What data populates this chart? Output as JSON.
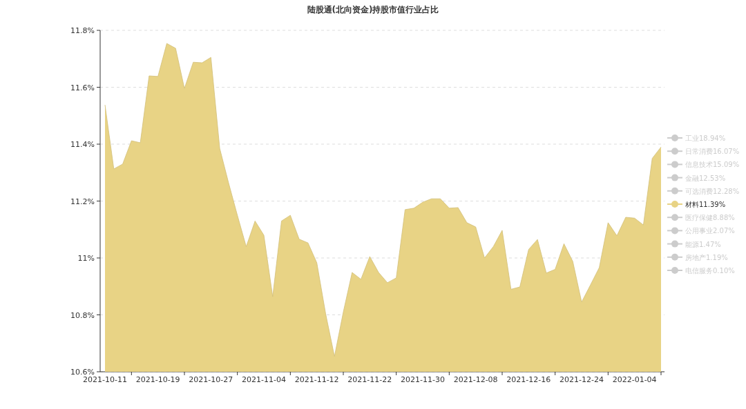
{
  "chart_data": {
    "type": "area",
    "title": "陆股通(北向资金)持股市值行业占比",
    "categories": [
      "2021-10-11",
      null,
      null,
      null,
      null,
      null,
      "2021-10-19",
      null,
      null,
      null,
      null,
      null,
      "2021-10-27",
      null,
      null,
      null,
      null,
      null,
      "2021-11-04",
      null,
      null,
      null,
      null,
      null,
      "2021-11-12",
      null,
      null,
      null,
      null,
      null,
      "2021-11-22",
      null,
      null,
      null,
      null,
      null,
      "2021-11-30",
      null,
      null,
      null,
      null,
      null,
      "2021-12-08",
      null,
      null,
      null,
      null,
      null,
      "2021-12-16",
      null,
      null,
      null,
      null,
      null,
      "2021-12-24",
      null,
      null,
      null,
      null,
      null,
      "2022-01-04",
      null,
      null,
      null
    ],
    "ylim": [
      10.6,
      11.8
    ],
    "yticks": [
      {
        "value": 10.6,
        "label": "10.6%"
      },
      {
        "value": 10.8,
        "label": "10.8%"
      },
      {
        "value": 11,
        "label": "11%"
      },
      {
        "value": 11.2,
        "label": "11.2%"
      },
      {
        "value": 11.4,
        "label": "11.4%"
      },
      {
        "value": 11.6,
        "label": "11.6%"
      },
      {
        "value": 11.8,
        "label": "11.8%"
      }
    ],
    "grid": "y",
    "legend": "right",
    "series": [
      {
        "name": "工业18.94%",
        "color": "#cccccc",
        "values": [
          null,
          null,
          null,
          null,
          null,
          null,
          null,
          null,
          null,
          null,
          null,
          null,
          null,
          null,
          null,
          null,
          null,
          null,
          null,
          null,
          null,
          null,
          null,
          null,
          null,
          null,
          null,
          null,
          null,
          null,
          null,
          null,
          null,
          null,
          null,
          null,
          null,
          null,
          null,
          null,
          null,
          null,
          null,
          null,
          null,
          null,
          null,
          null,
          null,
          null,
          null,
          null,
          null,
          null,
          null,
          null,
          null,
          null,
          null,
          null,
          null,
          null,
          null,
          null
        ]
      },
      {
        "name": "日常消费16.07%",
        "color": "#cccccc",
        "values": [
          null,
          null,
          null,
          null,
          null,
          null,
          null,
          null,
          null,
          null,
          null,
          null,
          null,
          null,
          null,
          null,
          null,
          null,
          null,
          null,
          null,
          null,
          null,
          null,
          null,
          null,
          null,
          null,
          null,
          null,
          null,
          null,
          null,
          null,
          null,
          null,
          null,
          null,
          null,
          null,
          null,
          null,
          null,
          null,
          null,
          null,
          null,
          null,
          null,
          null,
          null,
          null,
          null,
          null,
          null,
          null,
          null,
          null,
          null,
          null,
          null,
          null,
          null,
          null
        ]
      },
      {
        "name": "信息技术15.09%",
        "color": "#cccccc",
        "values": [
          null,
          null,
          null,
          null,
          null,
          null,
          null,
          null,
          null,
          null,
          null,
          null,
          null,
          null,
          null,
          null,
          null,
          null,
          null,
          null,
          null,
          null,
          null,
          null,
          null,
          null,
          null,
          null,
          null,
          null,
          null,
          null,
          null,
          null,
          null,
          null,
          null,
          null,
          null,
          null,
          null,
          null,
          null,
          null,
          null,
          null,
          null,
          null,
          null,
          null,
          null,
          null,
          null,
          null,
          null,
          null,
          null,
          null,
          null,
          null,
          null,
          null,
          null,
          null
        ]
      },
      {
        "name": "金融12.53%",
        "color": "#cccccc",
        "values": [
          null,
          null,
          null,
          null,
          null,
          null,
          null,
          null,
          null,
          null,
          null,
          null,
          null,
          null,
          null,
          null,
          null,
          null,
          null,
          null,
          null,
          null,
          null,
          null,
          null,
          null,
          null,
          null,
          null,
          null,
          null,
          null,
          null,
          null,
          null,
          null,
          null,
          null,
          null,
          null,
          null,
          null,
          null,
          null,
          null,
          null,
          null,
          null,
          null,
          null,
          null,
          null,
          null,
          null,
          null,
          null,
          null,
          null,
          null,
          null,
          null,
          null,
          null,
          null
        ]
      },
      {
        "name": "可选消费12.28%",
        "color": "#cccccc",
        "values": [
          null,
          null,
          null,
          null,
          null,
          null,
          null,
          null,
          null,
          null,
          null,
          null,
          null,
          null,
          null,
          null,
          null,
          null,
          null,
          null,
          null,
          null,
          null,
          null,
          null,
          null,
          null,
          null,
          null,
          null,
          null,
          null,
          null,
          null,
          null,
          null,
          null,
          null,
          null,
          null,
          null,
          null,
          null,
          null,
          null,
          null,
          null,
          null,
          null,
          null,
          null,
          null,
          null,
          null,
          null,
          null,
          null,
          null,
          null,
          null,
          null,
          null,
          null,
          null
        ]
      },
      {
        "name": "材料11.39%",
        "color": "#e8d385",
        "values": [
          11.538,
          11.313,
          11.33,
          11.412,
          11.405,
          11.64,
          11.638,
          11.754,
          11.737,
          11.596,
          11.688,
          11.686,
          11.705,
          11.385,
          11.264,
          11.15,
          11.04,
          11.13,
          11.08,
          10.864,
          11.13,
          11.15,
          11.066,
          11.053,
          10.983,
          10.804,
          10.654,
          10.81,
          10.949,
          10.925,
          11.005,
          10.949,
          10.913,
          10.93,
          11.17,
          11.175,
          11.196,
          11.208,
          11.208,
          11.175,
          11.177,
          11.124,
          11.109,
          11.0,
          11.04,
          11.097,
          10.89,
          10.898,
          11.03,
          11.065,
          10.947,
          10.96,
          11.05,
          10.988,
          10.845,
          10.905,
          10.966,
          11.124,
          11.078,
          11.143,
          11.14,
          11.116,
          11.35,
          11.39
        ]
      },
      {
        "name": "医疗保健8.88%",
        "color": "#cccccc",
        "values": [
          null,
          null,
          null,
          null,
          null,
          null,
          null,
          null,
          null,
          null,
          null,
          null,
          null,
          null,
          null,
          null,
          null,
          null,
          null,
          null,
          null,
          null,
          null,
          null,
          null,
          null,
          null,
          null,
          null,
          null,
          null,
          null,
          null,
          null,
          null,
          null,
          null,
          null,
          null,
          null,
          null,
          null,
          null,
          null,
          null,
          null,
          null,
          null,
          null,
          null,
          null,
          null,
          null,
          null,
          null,
          null,
          null,
          null,
          null,
          null,
          null,
          null,
          null,
          null
        ]
      },
      {
        "name": "公用事业2.07%",
        "color": "#cccccc",
        "values": [
          null,
          null,
          null,
          null,
          null,
          null,
          null,
          null,
          null,
          null,
          null,
          null,
          null,
          null,
          null,
          null,
          null,
          null,
          null,
          null,
          null,
          null,
          null,
          null,
          null,
          null,
          null,
          null,
          null,
          null,
          null,
          null,
          null,
          null,
          null,
          null,
          null,
          null,
          null,
          null,
          null,
          null,
          null,
          null,
          null,
          null,
          null,
          null,
          null,
          null,
          null,
          null,
          null,
          null,
          null,
          null,
          null,
          null,
          null,
          null,
          null,
          null,
          null,
          null
        ]
      },
      {
        "name": "能源1.47%",
        "color": "#cccccc",
        "values": [
          null,
          null,
          null,
          null,
          null,
          null,
          null,
          null,
          null,
          null,
          null,
          null,
          null,
          null,
          null,
          null,
          null,
          null,
          null,
          null,
          null,
          null,
          null,
          null,
          null,
          null,
          null,
          null,
          null,
          null,
          null,
          null,
          null,
          null,
          null,
          null,
          null,
          null,
          null,
          null,
          null,
          null,
          null,
          null,
          null,
          null,
          null,
          null,
          null,
          null,
          null,
          null,
          null,
          null,
          null,
          null,
          null,
          null,
          null,
          null,
          null,
          null,
          null,
          null
        ]
      },
      {
        "name": "房地产1.19%",
        "color": "#cccccc",
        "values": [
          null,
          null,
          null,
          null,
          null,
          null,
          null,
          null,
          null,
          null,
          null,
          null,
          null,
          null,
          null,
          null,
          null,
          null,
          null,
          null,
          null,
          null,
          null,
          null,
          null,
          null,
          null,
          null,
          null,
          null,
          null,
          null,
          null,
          null,
          null,
          null,
          null,
          null,
          null,
          null,
          null,
          null,
          null,
          null,
          null,
          null,
          null,
          null,
          null,
          null,
          null,
          null,
          null,
          null,
          null,
          null,
          null,
          null,
          null,
          null,
          null,
          null,
          null,
          null
        ]
      },
      {
        "name": "电信服务0.10%",
        "color": "#cccccc",
        "values": [
          null,
          null,
          null,
          null,
          null,
          null,
          null,
          null,
          null,
          null,
          null,
          null,
          null,
          null,
          null,
          null,
          null,
          null,
          null,
          null,
          null,
          null,
          null,
          null,
          null,
          null,
          null,
          null,
          null,
          null,
          null,
          null,
          null,
          null,
          null,
          null,
          null,
          null,
          null,
          null,
          null,
          null,
          null,
          null,
          null,
          null,
          null,
          null,
          null,
          null,
          null,
          null,
          null,
          null,
          null,
          null,
          null,
          null,
          null,
          null,
          null,
          null,
          null,
          null
        ]
      }
    ]
  }
}
